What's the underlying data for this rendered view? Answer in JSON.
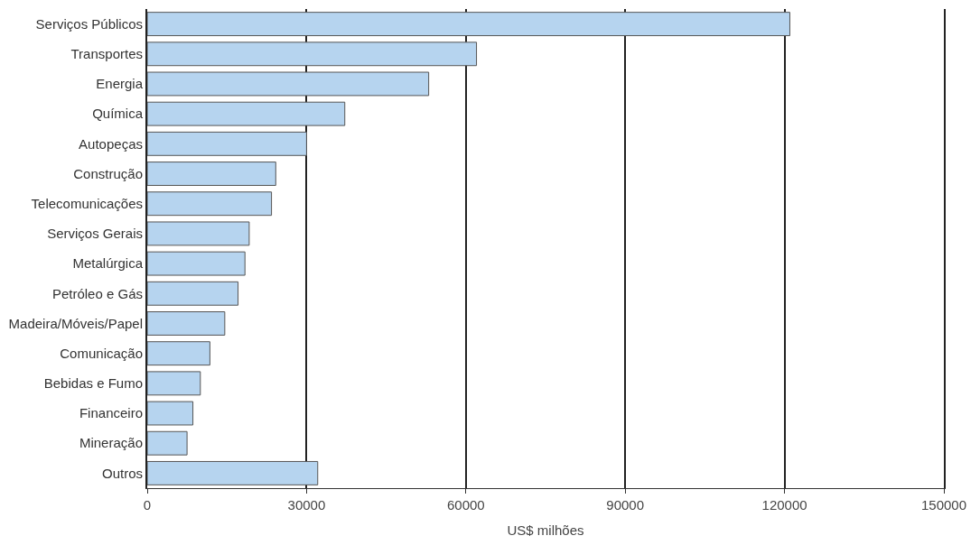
{
  "chart_data": {
    "type": "bar",
    "orientation": "horizontal",
    "xlabel": "US$ milhões",
    "categories": [
      "Serviços Públicos",
      "Transportes",
      "Energia",
      "Química",
      "Autopeças",
      "Construção",
      "Telecomunicações",
      "Serviços Gerais",
      "Metalúrgica",
      "Petróleo e Gás",
      "Madeira/Móveis/Papel",
      "Comunicação",
      "Bebidas e Fumo",
      "Financeiro",
      "Mineração",
      "Outros"
    ],
    "values": [
      121000,
      62000,
      53000,
      37200,
      30000,
      24200,
      23400,
      19200,
      18400,
      17100,
      14600,
      11800,
      10000,
      8600,
      7500,
      32100
    ],
    "color": "#b6d4ef",
    "xlim": [
      0,
      150000
    ],
    "xticks": [
      0,
      30000,
      60000,
      90000,
      120000,
      150000
    ],
    "grid": "x"
  }
}
